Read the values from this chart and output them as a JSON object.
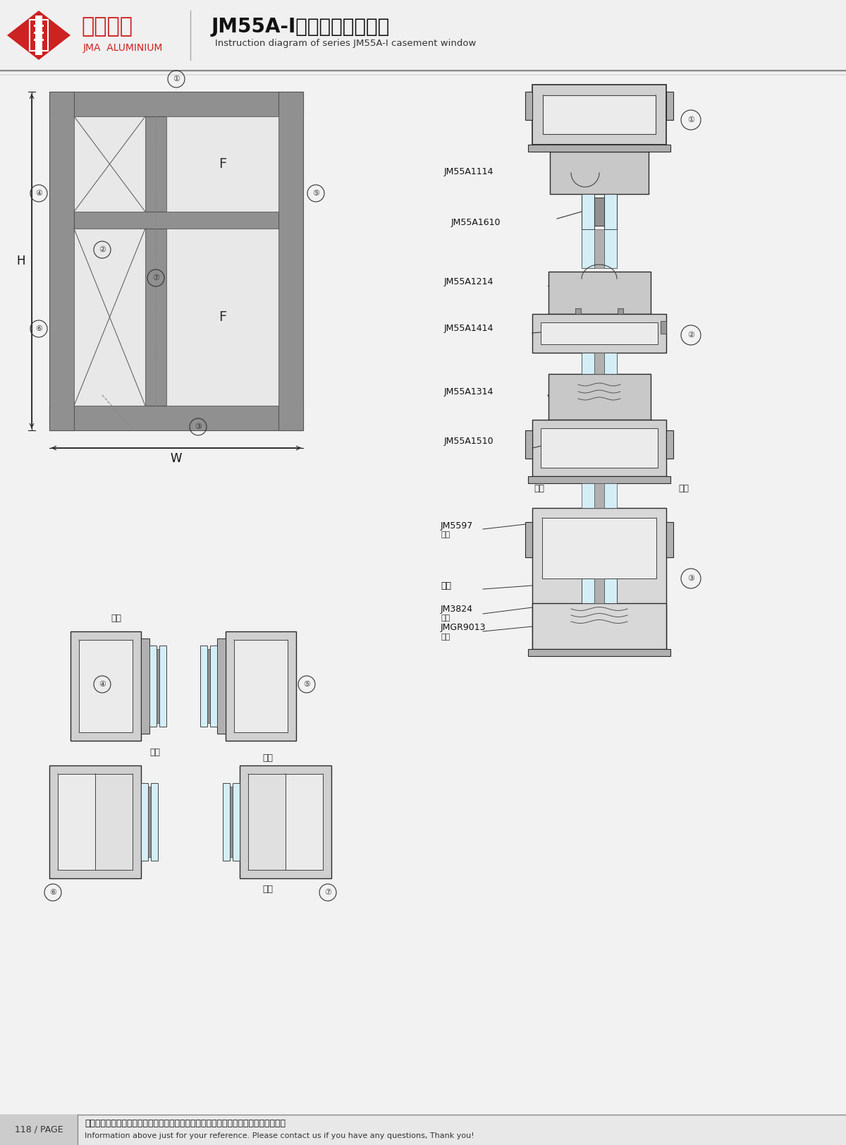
{
  "title_cn": "JM55A-I系列平开窗结构图",
  "title_en": "Instruction diagram of series JM55A-I casement window",
  "bg_color": "#f0f0f0",
  "white": "#ffffff",
  "dark_gray": "#404040",
  "medium_gray": "#808080",
  "light_gray": "#c0c0c0",
  "black": "#000000",
  "red": "#cc0000",
  "part_labels_right": [
    "JM55A1114",
    "JM55A1610",
    "JM55A1214",
    "JM55A1414",
    "JM55A1314",
    "JM55A1510"
  ],
  "part_labels_bottom_right": [
    "JM5597\n角码",
    "窗撑",
    "JM3824\n角码",
    "JMGR9013\n角码"
  ],
  "circle_labels": [
    "①",
    "②",
    "③",
    "④",
    "⑤",
    "⑥",
    "⑦"
  ],
  "dim_labels": [
    "H",
    "W",
    "F"
  ],
  "footer_cn": "图中所示型材截面、装配、编号、尺寸及重量仅供参考。如有疑问，请向本公司咨询。",
  "footer_en": "Information above just for your reference. Please contact us if you have any questions, Thank you!",
  "page": "118 / PAGE"
}
